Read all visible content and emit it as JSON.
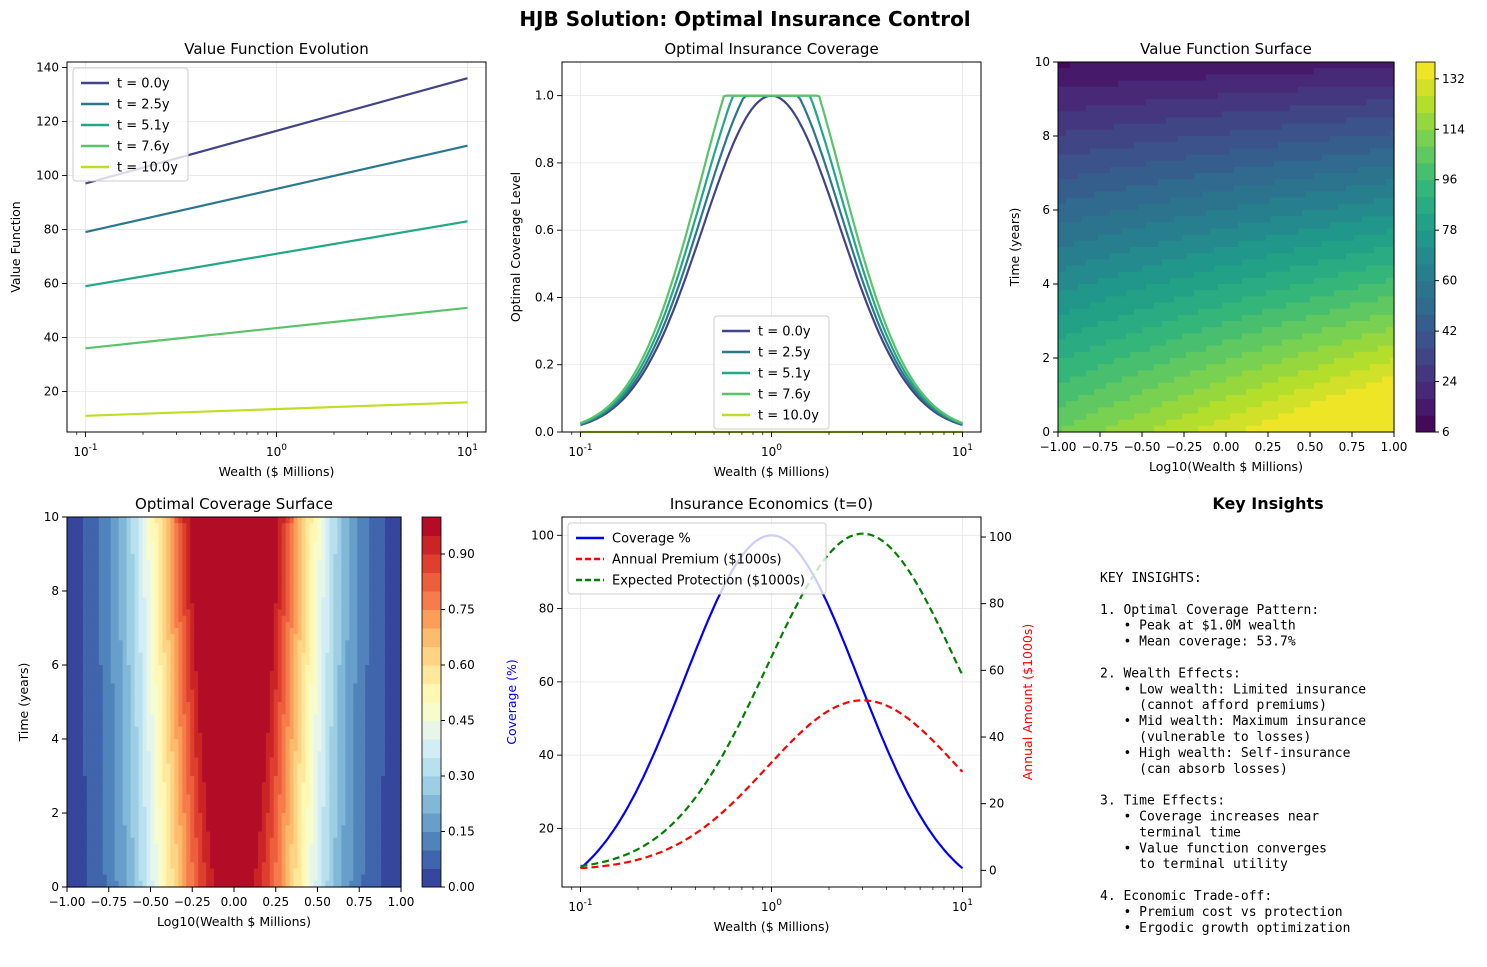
{
  "figure": {
    "title": "HJB Solution: Optimal Insurance Control"
  },
  "colors": {
    "t0": "#414487",
    "t25": "#2a788e",
    "t51": "#22a884",
    "t76": "#57c46b",
    "t10": "#bddf26",
    "coverage": "#0000ff",
    "premium": "#ff0000",
    "protection": "#008000"
  },
  "chart_data": [
    {
      "id": "value_evolution",
      "type": "line",
      "title": "Value Function Evolution",
      "xlabel": "Wealth ($ Millions)",
      "ylabel": "Value Function",
      "xscale": "log",
      "xlim": [
        0.08,
        12.5
      ],
      "ylim": [
        5,
        142
      ],
      "xticks": [
        0.1,
        1,
        10
      ],
      "xtick_labels": [
        "10^-1",
        "10^0",
        "10^1"
      ],
      "yticks": [
        20,
        40,
        60,
        80,
        100,
        120,
        140
      ],
      "grid": true,
      "legend": "upper left",
      "series": [
        {
          "name": "t = 0.0y",
          "color": "#414487",
          "x": [
            0.1,
            10
          ],
          "y": [
            97,
            136
          ]
        },
        {
          "name": "t = 2.5y",
          "color": "#2a788e",
          "x": [
            0.1,
            10
          ],
          "y": [
            79,
            111
          ]
        },
        {
          "name": "t = 5.1y",
          "color": "#22a884",
          "x": [
            0.1,
            10
          ],
          "y": [
            59,
            83
          ]
        },
        {
          "name": "t = 7.6y",
          "color": "#57c46b",
          "x": [
            0.1,
            10
          ],
          "y": [
            36,
            51
          ]
        },
        {
          "name": "t = 10.0y",
          "color": "#bddf26",
          "x": [
            0.1,
            10
          ],
          "y": [
            11,
            16
          ]
        }
      ]
    },
    {
      "id": "coverage_curves",
      "type": "line",
      "title": "Optimal Insurance Coverage",
      "xlabel": "Wealth ($ Millions)",
      "ylabel": "Optimal Coverage Level",
      "xscale": "log",
      "xlim": [
        0.08,
        12.5
      ],
      "ylim": [
        0,
        1.1
      ],
      "xticks": [
        0.1,
        1,
        10
      ],
      "xtick_labels": [
        "10^-1",
        "10^0",
        "10^1"
      ],
      "yticks": [
        0,
        0.2,
        0.4,
        0.6,
        0.8,
        1.0
      ],
      "ytick_labels": [
        "0.0",
        "0.2",
        "0.4",
        "0.6",
        "0.8",
        "1.0"
      ],
      "grid": true,
      "legend": "lower center",
      "series": [
        {
          "name": "t = 0.0y",
          "color": "#414487",
          "model": {
            "sigma": 0.36,
            "k": 1.0
          }
        },
        {
          "name": "t = 2.5y",
          "color": "#2a788e",
          "model": {
            "sigma": 0.36,
            "k": 1.08
          }
        },
        {
          "name": "t = 5.1y",
          "color": "#22a884",
          "model": {
            "sigma": 0.36,
            "k": 1.17
          }
        },
        {
          "name": "t = 7.6y",
          "color": "#57c46b",
          "model": {
            "sigma": 0.36,
            "k": 1.27
          }
        },
        {
          "name": "t = 10.0y",
          "color": "#bddf26",
          "model": {
            "constant": 0
          }
        }
      ]
    },
    {
      "id": "value_surface",
      "type": "heatmap",
      "title": "Value Function Surface",
      "xlabel": "Log10(Wealth $ Millions)",
      "ylabel": "Time (years)",
      "xlim": [
        -1,
        1
      ],
      "ylim": [
        0,
        10
      ],
      "xticks": [
        -1.0,
        -0.75,
        -0.5,
        -0.25,
        0.0,
        0.25,
        0.5,
        0.75,
        1.0
      ],
      "xtick_labels": [
        "−1.00",
        "−0.75",
        "−0.50",
        "−0.25",
        "0.00",
        "0.25",
        "0.50",
        "0.75",
        "1.00"
      ],
      "yticks": [
        0,
        2,
        4,
        6,
        8,
        10
      ],
      "colormap": "viridis",
      "colorbar_range": [
        6,
        138
      ],
      "colorbar_ticks": [
        6,
        24,
        42,
        60,
        78,
        96,
        114,
        132
      ],
      "levels": 22,
      "model": "V(t,w) = (117 + 19.5*w)*(1 - t/10) + 13.5 + 2.5*w"
    },
    {
      "id": "coverage_surface",
      "type": "heatmap",
      "title": "Optimal Coverage Surface",
      "xlabel": "Log10(Wealth $ Millions)",
      "ylabel": "Time (years)",
      "xlim": [
        -1,
        1
      ],
      "ylim": [
        0,
        10
      ],
      "xticks": [
        -1.0,
        -0.75,
        -0.5,
        -0.25,
        0.0,
        0.25,
        0.5,
        0.75,
        1.0
      ],
      "xtick_labels": [
        "−1.00",
        "−0.75",
        "−0.50",
        "−0.25",
        "0.00",
        "0.25",
        "0.50",
        "0.75",
        "1.00"
      ],
      "yticks": [
        0,
        2,
        4,
        6,
        8,
        10
      ],
      "colormap": "RdYlBu_r",
      "colorbar_range": [
        0,
        1
      ],
      "colorbar_ticks": [
        0.0,
        0.15,
        0.3,
        0.45,
        0.6,
        0.75,
        0.9
      ],
      "colorbar_tick_labels": [
        "0.00",
        "0.15",
        "0.30",
        "0.45",
        "0.60",
        "0.75",
        "0.90"
      ],
      "levels": 20
    },
    {
      "id": "economics",
      "type": "line",
      "title": "Insurance Economics (t=0)",
      "xlabel": "Wealth ($ Millions)",
      "ylabel": "Coverage (%)",
      "ylabel_right": "Annual Amount ($1000s)",
      "xscale": "log",
      "xlim": [
        0.08,
        12.5
      ],
      "ylim": [
        4,
        105
      ],
      "ylim_right": [
        -5,
        106
      ],
      "xticks": [
        0.1,
        1,
        10
      ],
      "xtick_labels": [
        "10^-1",
        "10^0",
        "10^1"
      ],
      "yticks": [
        20,
        40,
        60,
        80,
        100
      ],
      "yticks_right": [
        0,
        20,
        40,
        60,
        80,
        100
      ],
      "grid": true,
      "legend": "upper left",
      "series": [
        {
          "name": "Coverage %",
          "color": "#0000ff",
          "axis": "left",
          "style": "solid",
          "model": {
            "peak_x": 1,
            "peak": 100,
            "sigma": 0.457,
            "base": 0
          }
        },
        {
          "name": "Annual Premium ($1000s)",
          "color": "#ff0000",
          "axis": "right",
          "style": "dashed",
          "model": {
            "peak_x": 3,
            "peak": 51,
            "sigma": 0.5
          }
        },
        {
          "name": "Expected Protection ($1000s)",
          "color": "#008000",
          "axis": "right",
          "style": "dashed",
          "model": {
            "peak_x": 3,
            "peak": 101,
            "sigma": 0.5
          }
        }
      ]
    }
  ],
  "insights": {
    "title": "Key Insights",
    "lines": [
      "KEY INSIGHTS:",
      "",
      "1. Optimal Coverage Pattern:",
      "   • Peak at $1.0M wealth",
      "   • Mean coverage: 53.7%",
      "",
      "2. Wealth Effects:",
      "   • Low wealth: Limited insurance",
      "     (cannot afford premiums)",
      "   • Mid wealth: Maximum insurance",
      "     (vulnerable to losses)",
      "   • High wealth: Self-insurance",
      "     (can absorb losses)",
      "",
      "3. Time Effects:",
      "   • Coverage increases near",
      "     terminal time",
      "   • Value function converges",
      "     to terminal utility",
      "",
      "4. Economic Trade-off:",
      "   • Premium cost vs protection",
      "   • Ergodic growth optimization"
    ]
  }
}
